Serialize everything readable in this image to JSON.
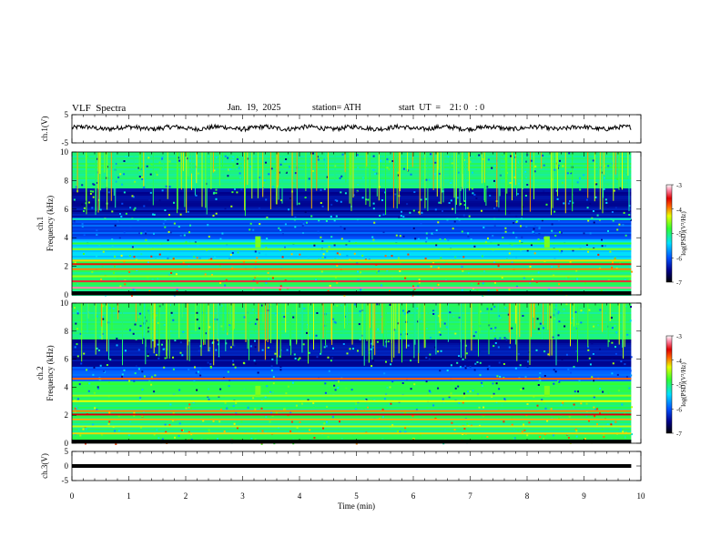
{
  "header": {
    "title": "VLF  Spectra",
    "date": "Jan.  19,  2025",
    "station": "station= ATH",
    "start": "start  UT  =    21: 0   : 0"
  },
  "chart_data": [
    {
      "type": "line",
      "ylabel": "ch.1(V)",
      "ylim": [
        -5,
        5
      ],
      "yticks": [
        "5",
        "-5"
      ],
      "x_range": [
        0,
        9.83
      ],
      "baseline": 0.3,
      "description_color": "#000000"
    },
    {
      "type": "heatmap",
      "ylabel": "ch.1\nFrequency (kHz)",
      "ylabel_lines": [
        "ch.1",
        "Frequency (kHz)"
      ],
      "ylim": [
        0,
        10
      ],
      "yticks": [
        "0",
        "2",
        "4",
        "6",
        "8",
        "10"
      ],
      "colorbar": {
        "label": "log(PSD)(V²/Hz)",
        "range": [
          -7,
          -3
        ],
        "ticks": [
          "-3",
          "-4",
          "-5",
          "-6",
          "-7"
        ]
      },
      "bands_khz": [
        {
          "f": 0.1,
          "level": -3.0
        },
        {
          "f": 0.5,
          "level": -3.2
        },
        {
          "f": 0.95,
          "level": -3.4
        },
        {
          "f": 1.3,
          "level": -4.5
        },
        {
          "f": 1.8,
          "level": -4.0
        },
        {
          "f": 2.15,
          "level": -3.6
        },
        {
          "f": 2.4,
          "level": -4.2
        },
        {
          "f": 3.2,
          "level": -4.6
        },
        {
          "f": 3.6,
          "level": -4.8
        },
        {
          "f": 5.3,
          "level": -5.2
        }
      ],
      "bursts_min": [
        3.27,
        8.35
      ]
    },
    {
      "type": "heatmap",
      "ylabel_lines": [
        "ch.2",
        "Frequency (kHz)"
      ],
      "ylim": [
        0,
        10
      ],
      "yticks": [
        "0",
        "2",
        "4",
        "6",
        "8",
        "10"
      ],
      "colorbar": {
        "label": "log(PSD)(V²/Hz)",
        "range": [
          -7,
          -3
        ],
        "ticks": [
          "-3",
          "-4",
          "-5",
          "-6",
          "-7"
        ]
      },
      "bands_khz": [
        {
          "f": 0.1,
          "level": -3.0
        },
        {
          "f": 0.7,
          "level": -4.2
        },
        {
          "f": 1.2,
          "level": -4.4
        },
        {
          "f": 1.7,
          "level": -4.1
        },
        {
          "f": 2.05,
          "level": -3.5
        },
        {
          "f": 2.3,
          "level": -4.0
        },
        {
          "f": 3.0,
          "level": -4.3
        },
        {
          "f": 3.4,
          "level": -4.5
        },
        {
          "f": 4.6,
          "level": -3.9
        }
      ],
      "bursts_min": [
        3.27,
        8.35
      ]
    },
    {
      "type": "line",
      "ylabel": "ch.3(V)",
      "ylim": [
        -5,
        5
      ],
      "yticks": [
        "5",
        "0",
        "-5"
      ],
      "x_range": [
        0,
        9.83
      ],
      "baseline": 0.0
    }
  ],
  "xaxis": {
    "label": "Time  (min)",
    "ticks": [
      "0",
      "1",
      "2",
      "3",
      "4",
      "5",
      "6",
      "7",
      "8",
      "9",
      "10"
    ],
    "range": [
      0,
      10
    ]
  }
}
